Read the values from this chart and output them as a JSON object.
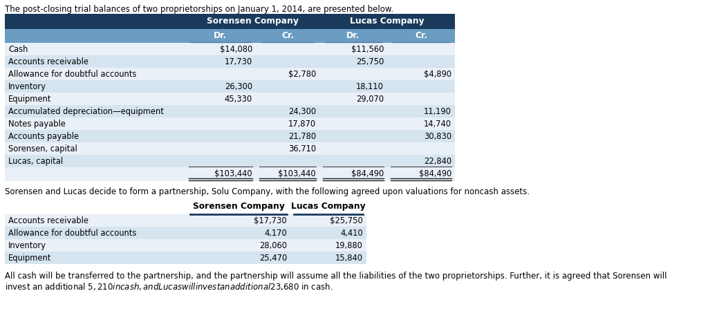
{
  "intro_text": "The post-closing trial balances of two proprietorships on January 1, 2014, are presented below.",
  "table1_header1": "Sorensen Company",
  "table1_header2": "Lucas Company",
  "table1_subheaders": [
    "Dr.",
    "Cr.",
    "Dr.",
    "Cr."
  ],
  "table1_rows": [
    [
      "Cash",
      "$14,080",
      "",
      "$11,560",
      ""
    ],
    [
      "Accounts receivable",
      "17,730",
      "",
      "25,750",
      ""
    ],
    [
      "Allowance for doubtful accounts",
      "",
      "$2,780",
      "",
      "$4,890"
    ],
    [
      "Inventory",
      "26,300",
      "",
      "18,110",
      ""
    ],
    [
      "Equipment",
      "45,330",
      "",
      "29,070",
      ""
    ],
    [
      "Accumulated depreciation—equipment",
      "",
      "24,300",
      "",
      "11,190"
    ],
    [
      "Notes payable",
      "",
      "17,870",
      "",
      "14,740"
    ],
    [
      "Accounts payable",
      "",
      "21,780",
      "",
      "30,830"
    ],
    [
      "Sorensen, capital",
      "",
      "36,710",
      "",
      ""
    ],
    [
      "Lucas, capital",
      "",
      "",
      "",
      "22,840"
    ]
  ],
  "table1_totals": [
    "$103,440",
    "$103,440",
    "$84,490",
    "$84,490"
  ],
  "middle_text": "Sorensen and Lucas decide to form a partnership, Solu Company, with the following agreed upon valuations for noncash assets.",
  "table2_header1": "Sorensen Company",
  "table2_header2": "Lucas Company",
  "table2_rows": [
    [
      "Accounts receivable",
      "$17,730",
      "$25,750"
    ],
    [
      "Allowance for doubtful accounts",
      "4,170",
      "4,410"
    ],
    [
      "Inventory",
      "28,060",
      "19,880"
    ],
    [
      "Equipment",
      "25,470",
      "15,840"
    ]
  ],
  "footer_line1": "All cash will be transferred to the partnership, and the partnership will assume all the liabilities of the two proprietorships. Further, it is agreed that Sorensen will",
  "footer_line2": "invest an additional $5,210 in cash, and Lucas will invest an additional $23,680 in cash.",
  "header_bg": "#1a3a5c",
  "subheader_bg": "#6b9dc2",
  "row_bg1": "#eaf0f7",
  "row_bg2": "#d6e4f0",
  "text_color": "#000000",
  "header_text_color": "#ffffff"
}
